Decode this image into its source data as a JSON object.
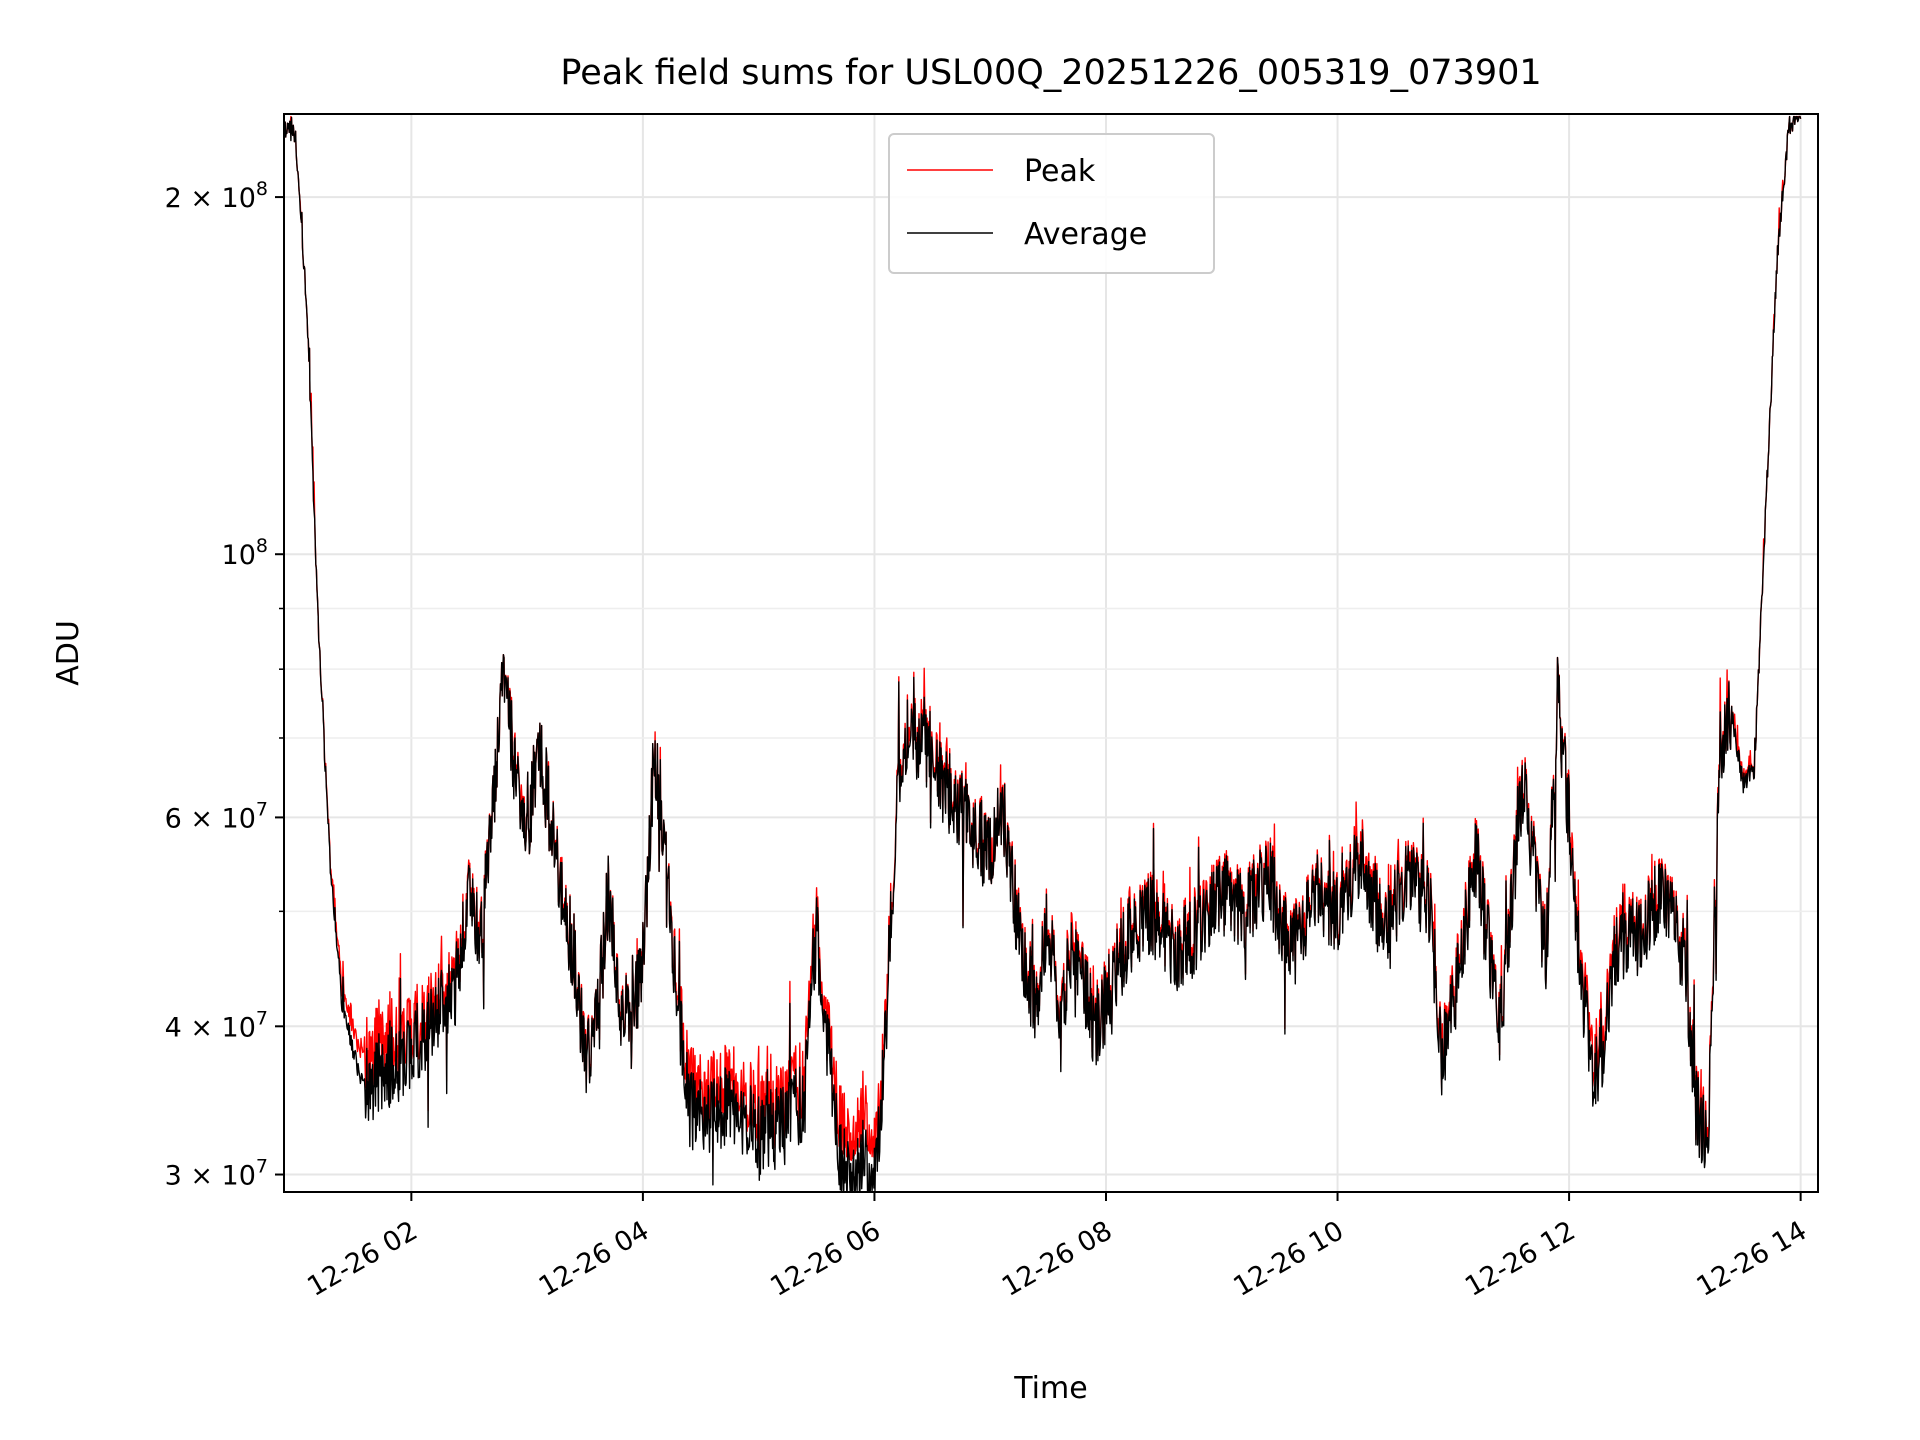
{
  "chart_data": {
    "type": "line",
    "title": "Peak field sums for USL00Q_20251226_005319_073901",
    "xlabel": "Time",
    "ylabel": "ADU",
    "y_scale": "log",
    "ylim": [
      29000000,
      235000000
    ],
    "xlim_hours": [
      0.9,
      14.15
    ],
    "x_ticks": [
      {
        "hour": 2,
        "label": "12-26 02"
      },
      {
        "hour": 4,
        "label": "12-26 04"
      },
      {
        "hour": 6,
        "label": "12-26 06"
      },
      {
        "hour": 8,
        "label": "12-26 08"
      },
      {
        "hour": 10,
        "label": "12-26 10"
      },
      {
        "hour": 12,
        "label": "12-26 12"
      },
      {
        "hour": 14,
        "label": "12-26 14"
      }
    ],
    "y_major_ticks": [
      {
        "value": 30000000,
        "base": "3",
        "exp": "7"
      },
      {
        "value": 40000000,
        "base": "4",
        "exp": "7"
      },
      {
        "value": 60000000,
        "base": "6",
        "exp": "7"
      },
      {
        "value": 100000000,
        "base": "",
        "exp": "8"
      },
      {
        "value": 200000000,
        "base": "2",
        "exp": "8"
      }
    ],
    "y_minor_ticks": [
      50000000,
      70000000,
      80000000,
      90000000
    ],
    "legend": {
      "position": "top-center",
      "entries": [
        "Peak",
        "Average"
      ]
    },
    "series": [
      {
        "name": "Peak",
        "color": "#ff0000"
      },
      {
        "name": "Average",
        "color": "#000000"
      }
    ],
    "x_hours": [
      0.9,
      1.0,
      1.1,
      1.2,
      1.3,
      1.4,
      1.5,
      1.6,
      1.7,
      1.8,
      1.9,
      2.0,
      2.2,
      2.4,
      2.5,
      2.6,
      2.7,
      2.8,
      2.9,
      3.0,
      3.1,
      3.2,
      3.3,
      3.4,
      3.5,
      3.6,
      3.7,
      3.8,
      3.9,
      4.0,
      4.1,
      4.2,
      4.3,
      4.4,
      4.6,
      4.8,
      5.0,
      5.2,
      5.4,
      5.5,
      5.6,
      5.7,
      5.8,
      5.9,
      6.0,
      6.1,
      6.2,
      6.3,
      6.4,
      6.5,
      6.6,
      6.7,
      6.8,
      6.9,
      7.0,
      7.1,
      7.2,
      7.3,
      7.4,
      7.5,
      7.6,
      7.7,
      7.8,
      7.9,
      8.0,
      8.2,
      8.4,
      8.6,
      8.8,
      9.0,
      9.2,
      9.4,
      9.6,
      9.8,
      10.0,
      10.2,
      10.4,
      10.6,
      10.8,
      10.9,
      11.0,
      11.2,
      11.4,
      11.6,
      11.8,
      11.9,
      12.0,
      12.1,
      12.2,
      12.3,
      12.4,
      12.6,
      12.8,
      13.0,
      13.1,
      13.2,
      13.3,
      13.4,
      13.5,
      13.6,
      13.7,
      13.8,
      13.9,
      14.0
    ],
    "average_values": [
      230000000,
      225000000,
      160000000,
      85000000,
      55000000,
      42000000,
      38000000,
      35500000,
      36500000,
      37000000,
      37500000,
      38500000,
      40500000,
      44000000,
      52000000,
      48000000,
      60000000,
      80000000,
      65000000,
      58000000,
      70000000,
      60000000,
      52000000,
      46000000,
      38000000,
      40000000,
      52000000,
      42000000,
      40000000,
      46000000,
      68000000,
      54000000,
      42000000,
      34000000,
      34000000,
      34500000,
      32500000,
      33000000,
      35000000,
      48000000,
      38000000,
      31000000,
      29500000,
      31000000,
      29500000,
      40000000,
      66000000,
      72000000,
      68000000,
      70000000,
      64000000,
      62000000,
      60000000,
      58000000,
      56000000,
      62000000,
      52000000,
      45000000,
      42000000,
      50000000,
      40000000,
      47000000,
      44000000,
      40000000,
      42000000,
      48000000,
      50000000,
      46000000,
      48000000,
      52000000,
      50000000,
      54000000,
      46000000,
      52000000,
      50000000,
      56000000,
      48000000,
      54000000,
      50000000,
      38000000,
      42000000,
      56000000,
      40000000,
      64000000,
      46000000,
      76000000,
      60000000,
      44000000,
      37000000,
      38000000,
      46000000,
      48000000,
      52000000,
      46000000,
      34000000,
      32500000,
      66000000,
      74000000,
      64000000,
      66000000,
      110000000,
      180000000,
      230000000,
      235000000
    ],
    "peak_extra_ratio": [
      1.0,
      1.0,
      1.0,
      1.0,
      1.01,
      1.03,
      1.04,
      1.06,
      1.07,
      1.06,
      1.05,
      1.04,
      1.03,
      1.02,
      1.01,
      1.01,
      1.0,
      1.0,
      1.01,
      1.0,
      1.0,
      1.0,
      1.01,
      1.0,
      1.01,
      1.0,
      1.0,
      1.01,
      1.0,
      1.0,
      1.0,
      1.0,
      1.02,
      1.05,
      1.05,
      1.04,
      1.05,
      1.04,
      1.05,
      1.02,
      1.03,
      1.08,
      1.06,
      1.1,
      1.06,
      1.02,
      1.01,
      1.01,
      1.01,
      1.01,
      1.01,
      1.01,
      1.0,
      1.01,
      1.0,
      1.0,
      1.01,
      1.01,
      1.01,
      1.01,
      1.01,
      1.02,
      1.01,
      1.01,
      1.01,
      1.01,
      1.01,
      1.01,
      1.02,
      1.01,
      1.01,
      1.01,
      1.01,
      1.01,
      1.01,
      1.02,
      1.01,
      1.01,
      1.01,
      1.01,
      1.02,
      1.01,
      1.01,
      1.01,
      1.01,
      1.0,
      1.01,
      1.02,
      1.04,
      1.03,
      1.02,
      1.01,
      1.01,
      1.01,
      1.01,
      1.02,
      1.01,
      1.0,
      1.01,
      1.0,
      1.0,
      1.0,
      1.0,
      1.0
    ]
  }
}
